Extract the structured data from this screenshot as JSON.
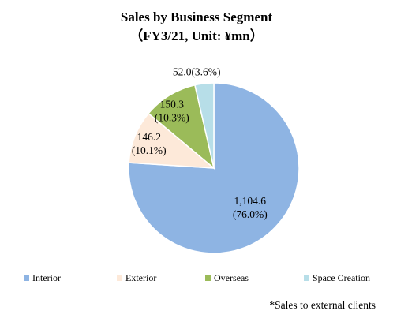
{
  "chart_data": {
    "type": "pie",
    "title": "Sales by Business Segment",
    "subtitle": "（FY3/21, Unit: ¥mn）",
    "categories": [
      "Interior",
      "Exterior",
      "Overseas",
      "Space Creation"
    ],
    "values": [
      1104.6,
      146.2,
      150.3,
      52.0
    ],
    "percentages": [
      76.0,
      10.1,
      10.3,
      3.6
    ],
    "value_labels": [
      "1,104.6",
      "146.2",
      "150.3",
      "52.0"
    ],
    "percent_labels": [
      "(76.0%)",
      "(10.1%)",
      "(10.3%)",
      "(3.6%)"
    ],
    "colors": [
      "#8eb4e3",
      "#fde9d9",
      "#9bbb59",
      "#b7dee8"
    ],
    "legend_position": "bottom",
    "footnote": "*Sales to external clients"
  }
}
